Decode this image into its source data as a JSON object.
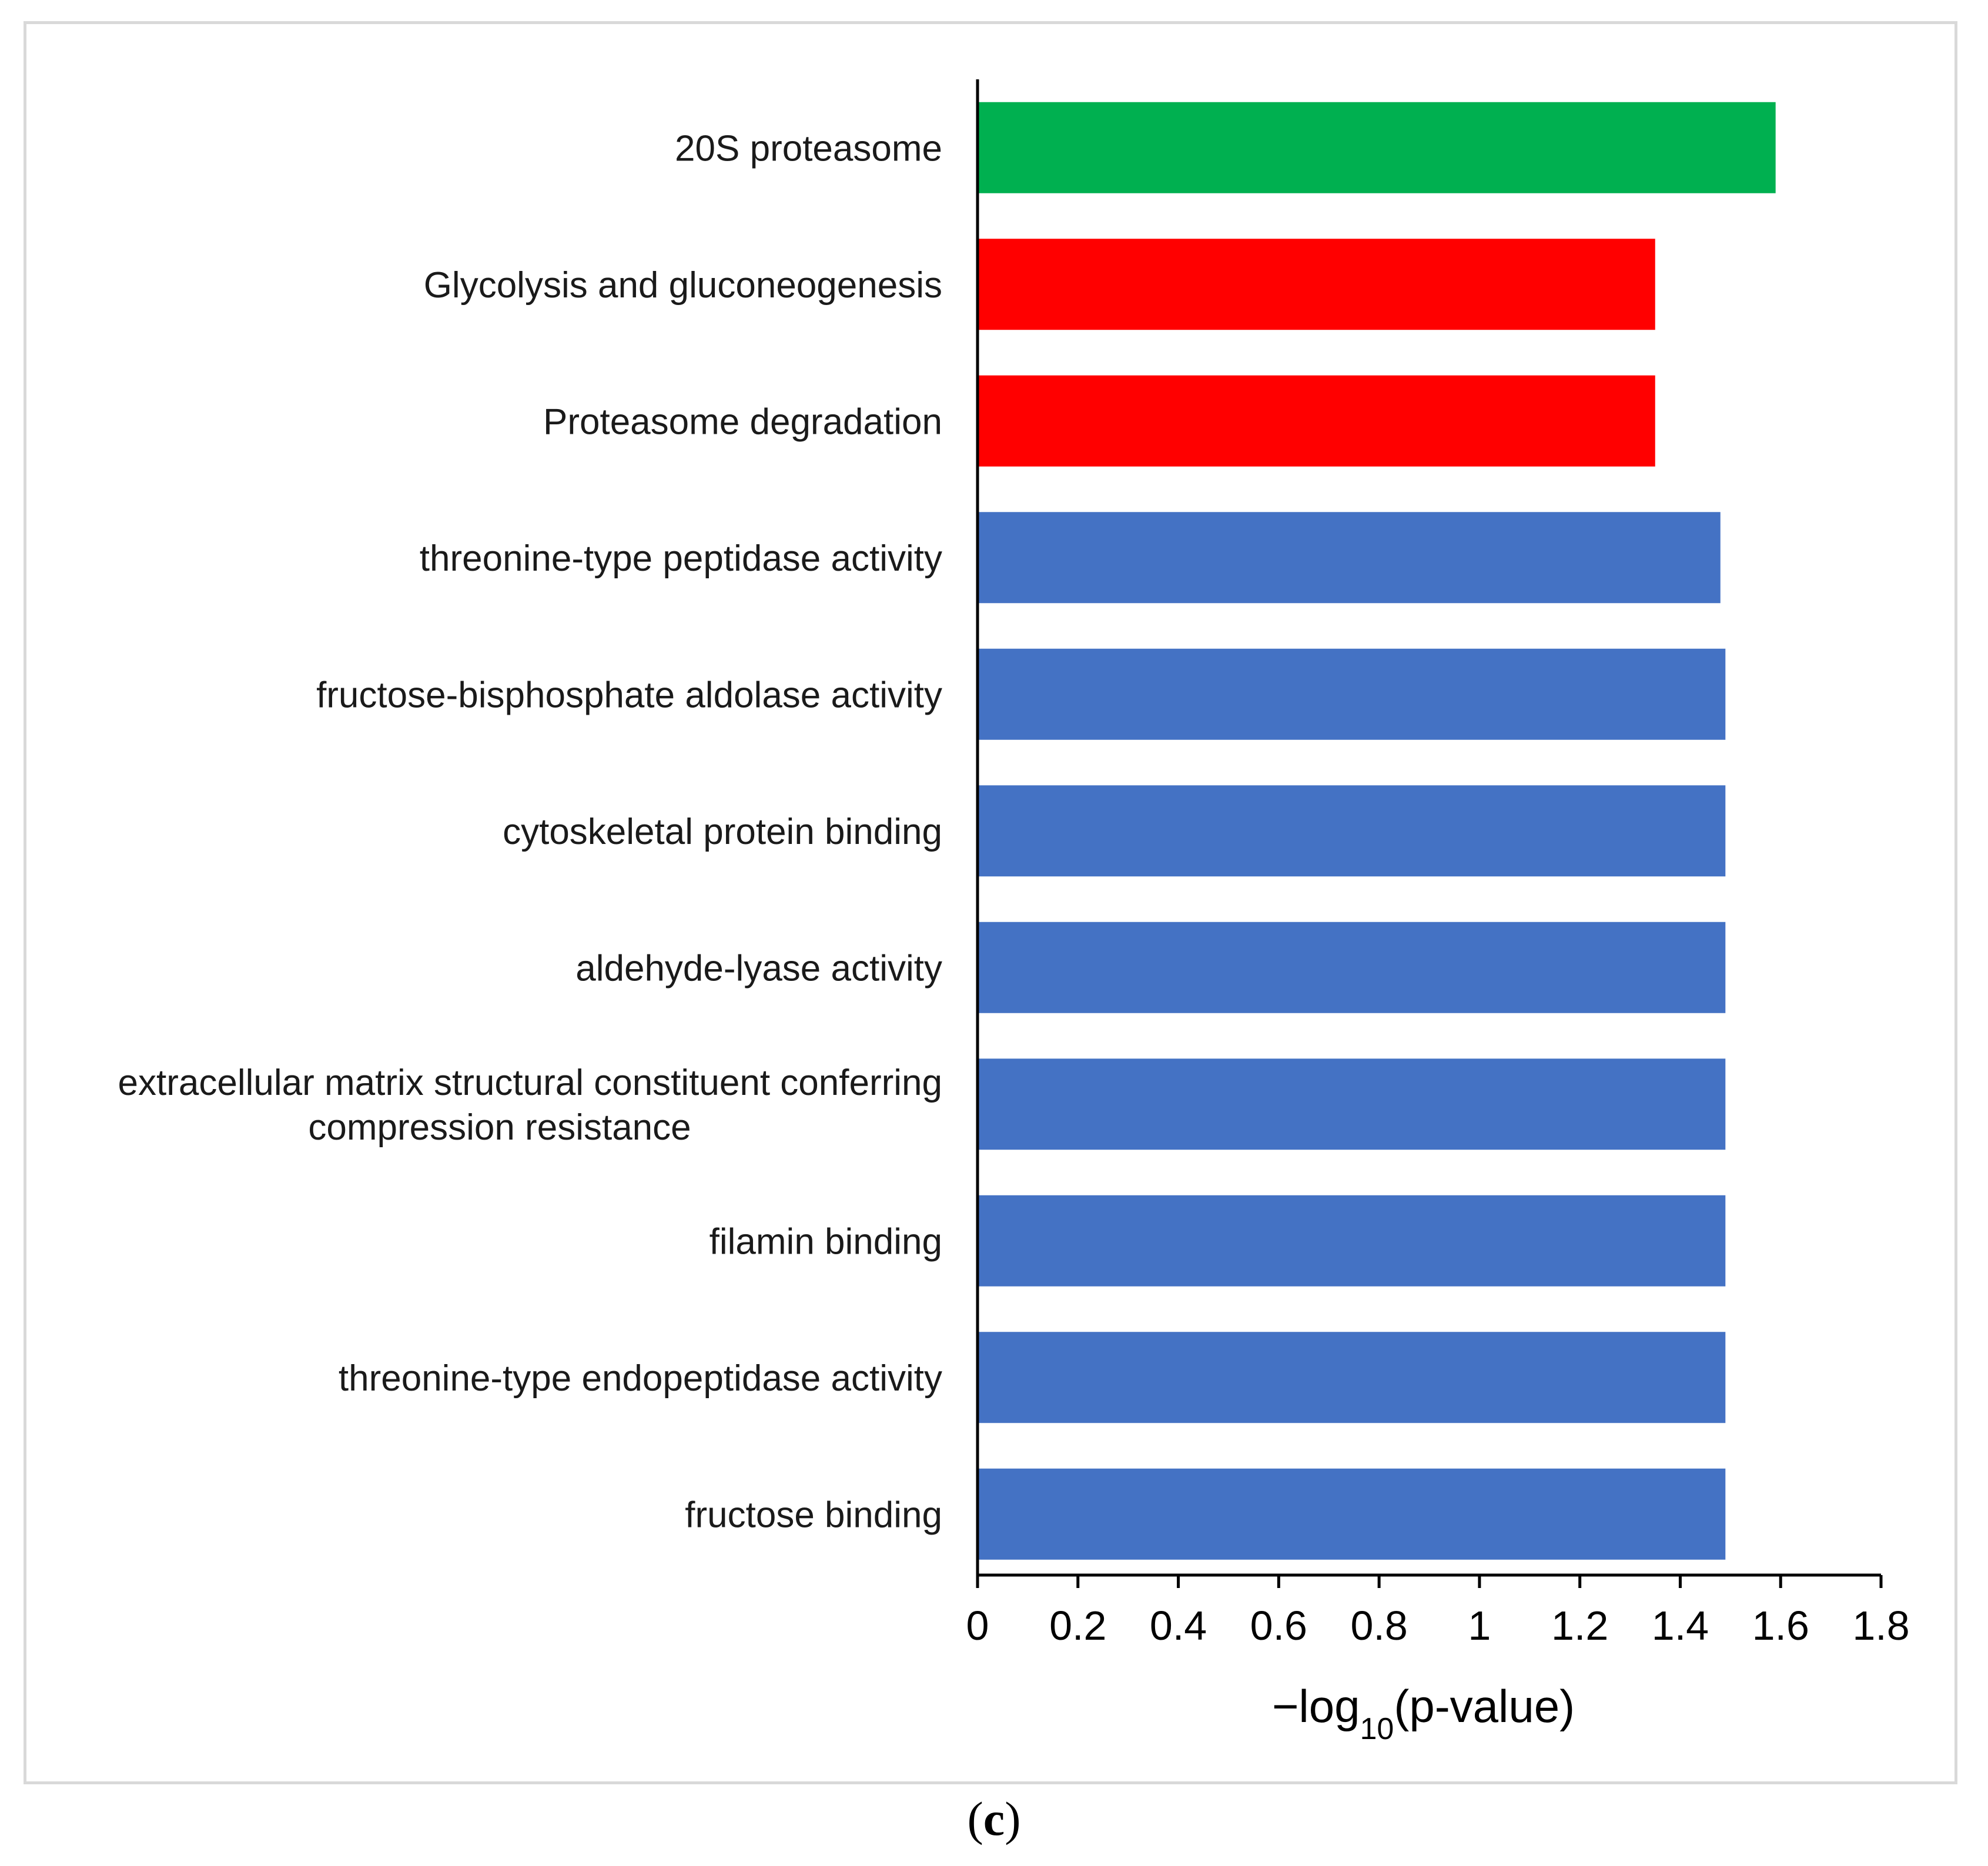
{
  "chart_data": {
    "type": "bar",
    "orientation": "horizontal",
    "categories": [
      "20S proteasome",
      "Glycolysis and gluconeogenesis",
      "Proteasome degradation",
      "threonine-type peptidase activity",
      "fructose-bisphosphate aldolase activity",
      "cytoskeletal protein binding",
      "aldehyde-lyase activity",
      "extracellular matrix structural constituent conferring compression resistance",
      "filamin binding",
      "threonine-type endopeptidase activity",
      "fructose binding"
    ],
    "label_lines": [
      [
        "20S proteasome"
      ],
      [
        "Glycolysis and gluconeogenesis"
      ],
      [
        "Proteasome degradation"
      ],
      [
        "threonine-type peptidase activity"
      ],
      [
        "fructose-bisphosphate aldolase activity"
      ],
      [
        "cytoskeletal protein binding"
      ],
      [
        "aldehyde-lyase activity"
      ],
      [
        "extracellular matrix structural constituent conferring",
        "compression resistance"
      ],
      [
        "filamin binding"
      ],
      [
        "threonine-type endopeptidase activity"
      ],
      [
        "fructose binding"
      ]
    ],
    "values": [
      1.59,
      1.35,
      1.35,
      1.48,
      1.49,
      1.49,
      1.49,
      1.49,
      1.49,
      1.49,
      1.49
    ],
    "bar_colors": [
      "#00b050",
      "#ff0000",
      "#ff0000",
      "#4472c4",
      "#4472c4",
      "#4472c4",
      "#4472c4",
      "#4472c4",
      "#4472c4",
      "#4472c4",
      "#4472c4"
    ],
    "xlim": [
      0,
      1.8
    ],
    "xticks": [
      0,
      0.2,
      0.4,
      0.6,
      0.8,
      1,
      1.2,
      1.4,
      1.6,
      1.8
    ],
    "xtick_labels": [
      "0",
      "0.2",
      "0.4",
      "0.6",
      "0.8",
      "1",
      "1.2",
      "1.4",
      "1.6",
      "1.8"
    ],
    "xlabel": {
      "prefix": "−log",
      "subscript": "10",
      "suffix": "(p-value)"
    },
    "title": "",
    "grid": false
  },
  "panel_label": "c"
}
